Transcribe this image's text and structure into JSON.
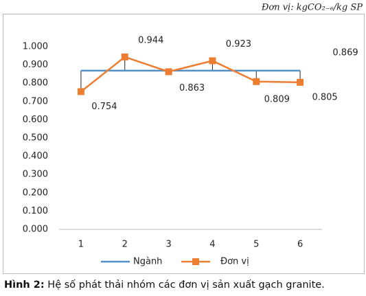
{
  "chart_data": {
    "type": "line",
    "unit_note": "Đơn vị: kgCO₂₋ₑ/kg SP",
    "categories": [
      "1",
      "2",
      "3",
      "4",
      "5",
      "6"
    ],
    "series": [
      {
        "name": "Ngành",
        "color": "#4f8fc6",
        "values": [
          0.869,
          0.869,
          0.869,
          0.869,
          0.869,
          0.869
        ]
      },
      {
        "name": "Đơn vị",
        "color": "#ed7d31",
        "values": [
          0.754,
          0.944,
          0.863,
          0.923,
          0.809,
          0.805
        ]
      }
    ],
    "ylim": [
      0,
      1
    ],
    "yticks": [
      {
        "value": 0,
        "label": "0.000"
      },
      {
        "value": 0.1,
        "label": "0.100"
      },
      {
        "value": 0.2,
        "label": "0.200"
      },
      {
        "value": 0.3,
        "label": "0.300"
      },
      {
        "value": 0.4,
        "label": "0.400"
      },
      {
        "value": 0.5,
        "label": "0.500"
      },
      {
        "value": 0.6,
        "label": "0.600"
      },
      {
        "value": 0.7,
        "label": "0.700"
      },
      {
        "value": 0.8,
        "label": "0.800"
      },
      {
        "value": 0.9,
        "label": "0.900"
      },
      {
        "value": 1,
        "label": "1.000"
      }
    ],
    "grid": false,
    "legend": "bottom",
    "caption_label": "Hình 2:",
    "caption_text": "Hệ số phát thải nhóm các đơn vị sản xuất gạch granite."
  }
}
